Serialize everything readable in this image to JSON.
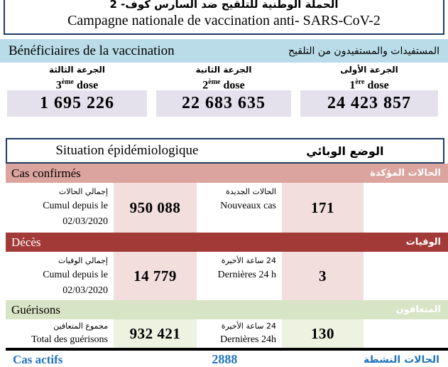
{
  "colors": {
    "navy_border": "#1f3864",
    "vaccination_bar_bg": "#b9dce8",
    "dose_value_bg": "#e4e1ed",
    "confirmed_bar_bg": "#dca49e",
    "confirmed_value_bg": "#f2dedd",
    "deaths_bar_bg": "#a23b38",
    "deaths_value_bg": "#f2dedd",
    "recoveries_bar_bg": "#d8e4c6",
    "recoveries_value_bg": "#edf2e1",
    "active_text": "#2173bd"
  },
  "header": {
    "title_ar": "الحملة الوطنية للتلقيح ضد السارس كوف- 2",
    "title_fr": "Campagne nationale de vaccination anti- SARS-CoV-2"
  },
  "vaccination": {
    "heading_fr": "Bénéficiaires de la vaccination",
    "heading_ar": "المستفيدات والمستفيدون من التلقيح",
    "doses": [
      {
        "label_ar": "الجرعة الثالثة",
        "num": "3",
        "sup": "ème",
        "word": "dose",
        "value": "1 695 226"
      },
      {
        "label_ar": "الجرعة الثانية",
        "num": "2",
        "sup": "ème",
        "word": "dose",
        "value": "22 683 635"
      },
      {
        "label_ar": "الجرعة الأولى",
        "num": "1",
        "sup": "ère",
        "word": "dose",
        "value": "24 423 857"
      }
    ]
  },
  "epidemiology": {
    "heading_fr": "Situation épidémiologique",
    "heading_ar": "الوضع الوبائي",
    "sections": [
      {
        "name_fr": "Cas confirmés",
        "name_ar": "الحالات المؤكدة",
        "total_label_ar": "إجمالي الحالات",
        "total_label_fr": "Cumul depuis le",
        "total_label_date": "02/03/2020",
        "total_value": "950 088",
        "recent_label_ar": "الحالات الجديدة",
        "recent_label_fr": "Nouveaux cas",
        "recent_value": "171"
      },
      {
        "name_fr": "Décès",
        "name_ar": "الوفيات",
        "total_label_ar": "إجمالي الوفيات",
        "total_label_fr": "Cumul depuis le",
        "total_label_date": "02/03/2020",
        "total_value": "14 779",
        "recent_label_ar": "24 ساعة الأخيرة",
        "recent_label_fr": "Dernières 24 h",
        "recent_value": "3"
      },
      {
        "name_fr": "Guérisons",
        "name_ar": "المتعافون",
        "total_label_ar": "مجموع المتعافين",
        "total_label_fr": "Total des guérisons",
        "total_value": "932 421",
        "recent_label_ar": "24 ساعة الأخيرة",
        "recent_label_fr": "Dernières 24h",
        "recent_value": "130"
      }
    ],
    "active": {
      "label_fr": "Cas actifs",
      "value": "2888",
      "label_ar": "الحالات النشطة"
    }
  }
}
